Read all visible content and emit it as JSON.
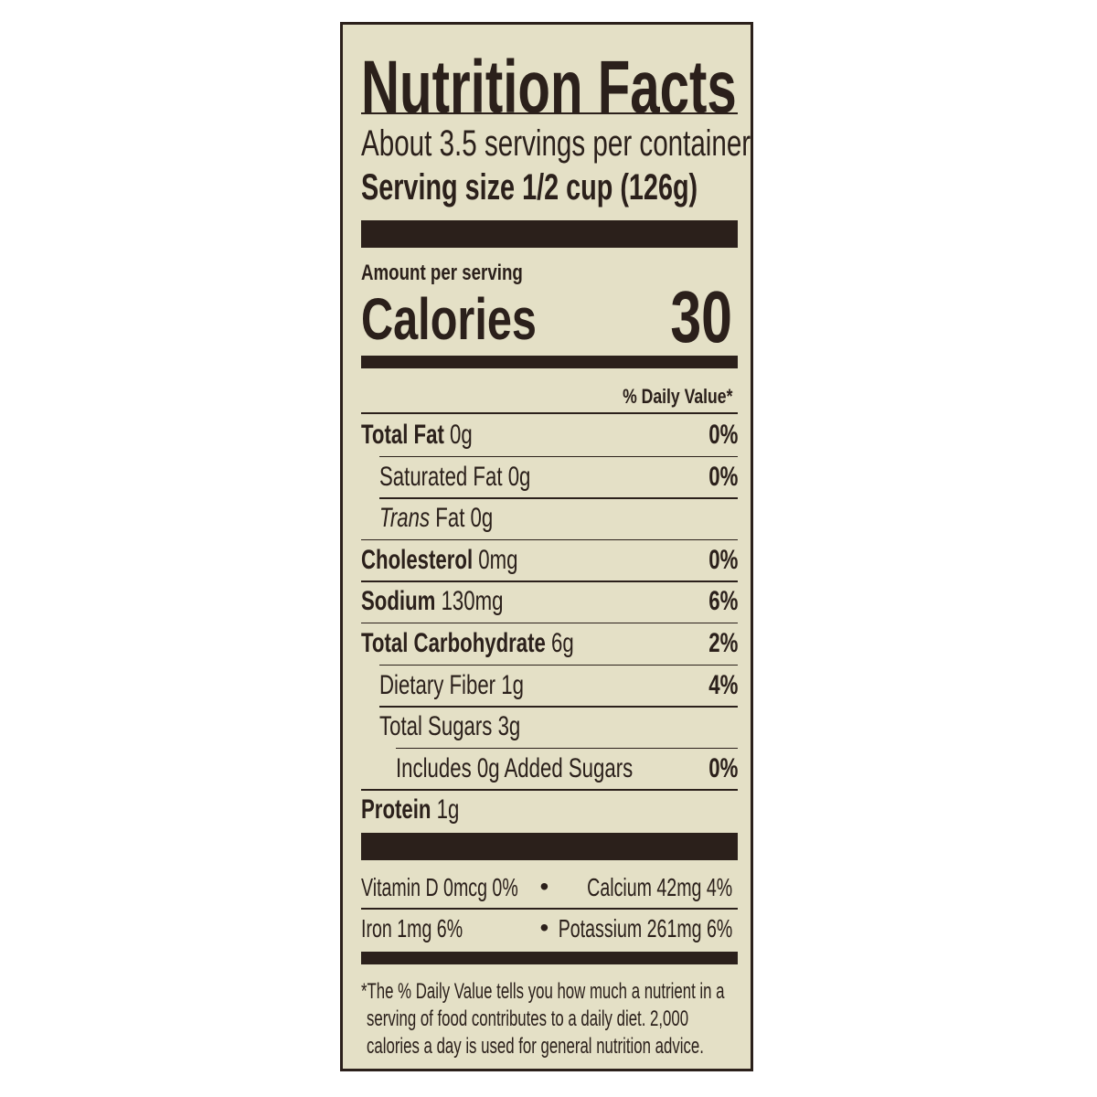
{
  "title": "Nutrition Facts",
  "servings_per_container": "About 3.5 servings per container",
  "serving_size_label": "Serving size",
  "serving_size_value": "1/2 cup (126g)",
  "amount_per_serving": "Amount per serving",
  "calories_label": "Calories",
  "calories_value": "30",
  "daily_value_header": "% Daily Value*",
  "nutrients": [
    {
      "name": "Total Fat",
      "amount": "0g",
      "dv": "0%"
    },
    {
      "name": "Saturated Fat",
      "amount": "0g",
      "dv": "0%"
    },
    {
      "name": "Trans",
      "amount": "Fat 0g",
      "dv": ""
    },
    {
      "name": "Cholesterol",
      "amount": "0mg",
      "dv": "0%"
    },
    {
      "name": "Sodium",
      "amount": "130mg",
      "dv": "6%"
    },
    {
      "name": "Total Carbohydrate",
      "amount": "6g",
      "dv": "2%"
    },
    {
      "name": "Dietary Fiber",
      "amount": "1g",
      "dv": "4%"
    },
    {
      "name": "Total Sugars",
      "amount": "3g",
      "dv": ""
    },
    {
      "name": "Includes 0g Added Sugars",
      "amount": "",
      "dv": "0%"
    },
    {
      "name": "Protein",
      "amount": "1g",
      "dv": ""
    }
  ],
  "vitamins": {
    "vitamin_d": "Vitamin D 0mcg 0%",
    "calcium": "Calcium 42mg 4%",
    "iron": "Iron 1mg 6%",
    "potassium": "Potassium 261mg 6%",
    "bullet": "•"
  },
  "footnote": [
    "*The % Daily Value tells you how much a nutrient in a",
    "serving of food contributes to a daily diet. 2,000",
    "calories a day is used for general nutrition advice."
  ],
  "colors": {
    "ink": "#2b201b",
    "paper": "#e4e0c6"
  }
}
